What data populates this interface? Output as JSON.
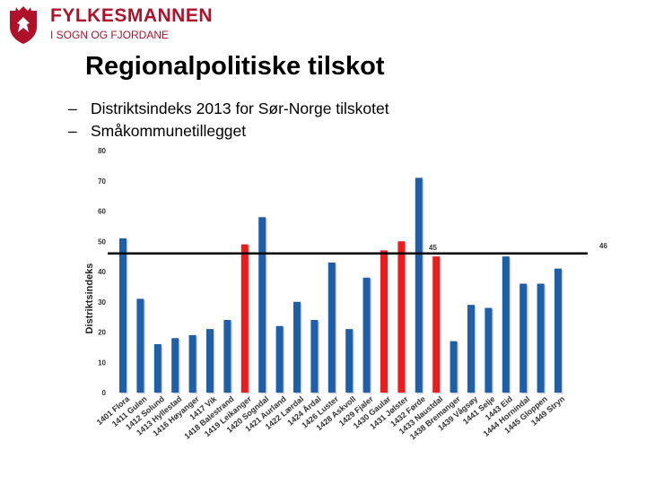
{
  "header": {
    "org_line1": "FYLKESMANNEN",
    "org_line2": "I SOGN OG FJORDANE",
    "crest_icon": "coat-of-arms-icon",
    "brand_color": "#b0112a"
  },
  "slide": {
    "title": "Regionalpolitiske tilskot",
    "bullets": [
      "Distriktsindeks 2013 for Sør-Norge tilskotet",
      "Småkommunetillegget"
    ]
  },
  "chart_data": {
    "type": "bar",
    "ylabel": "Distriktsindeks",
    "ylim": [
      0,
      80
    ],
    "yticks": [
      0,
      10,
      20,
      30,
      40,
      50,
      60,
      70,
      80
    ],
    "grid": false,
    "threshold": {
      "value": 46,
      "label": "46"
    },
    "threshold_label_secondary": "45",
    "categories": [
      "1401 Flora",
      "1411 Gulen",
      "1412 Solund",
      "1413 Hyllestad",
      "1416 Høyanger",
      "1417 Vik",
      "1418 Balestrand",
      "1419 Leikanger",
      "1420 Sogndal",
      "1421 Aurland",
      "1422 Lærdal",
      "1424 Årdal",
      "1426 Luster",
      "1428 Askvoll",
      "1429 Fjaler",
      "1430 Gaular",
      "1431 Jølster",
      "1432 Førde",
      "1433 Naustdal",
      "1438 Bremanger",
      "1439 Vågsøy",
      "1441 Selje",
      "1443 Eid",
      "1444 Hornindal",
      "1445 Gloppen",
      "1449 Stryn"
    ],
    "values": [
      51,
      31,
      16,
      18,
      19,
      21,
      24,
      49,
      58,
      22,
      30,
      24,
      43,
      21,
      38,
      47,
      50,
      71,
      45,
      17,
      29,
      28,
      45,
      36,
      36,
      41
    ],
    "highlighted": [
      false,
      false,
      false,
      false,
      false,
      false,
      false,
      true,
      false,
      false,
      false,
      false,
      false,
      false,
      false,
      true,
      true,
      false,
      true,
      false,
      false,
      false,
      false,
      false,
      false,
      false
    ],
    "colors": {
      "bar": "#1f5fa8",
      "highlight": "#e81d1d",
      "threshold": "#000000"
    }
  }
}
